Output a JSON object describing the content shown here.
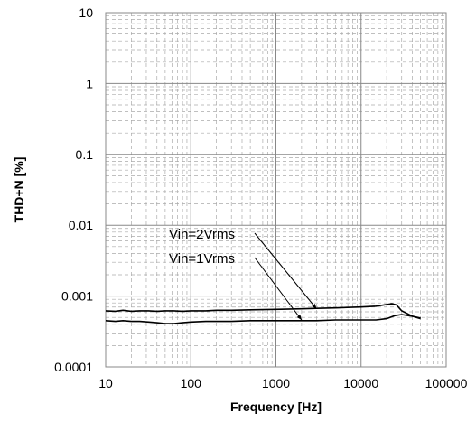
{
  "chart_data": {
    "type": "line",
    "xlabel": "Frequency [Hz]",
    "ylabel": "THD+N [%]",
    "x_scale": "log",
    "y_scale": "log",
    "xlim": [
      10,
      100000
    ],
    "ylim": [
      0.0001,
      10
    ],
    "x_ticks": [
      "10",
      "100",
      "1000",
      "10000",
      "100000"
    ],
    "y_ticks": [
      "10",
      "1",
      "0.1",
      "0.01",
      "0.001",
      "0.0001"
    ],
    "grid": true,
    "series": [
      {
        "name": "Vin=2Vrms",
        "color": "#000000",
        "x": [
          10,
          13,
          16,
          20,
          25,
          32,
          40,
          50,
          63,
          80,
          100,
          150,
          200,
          300,
          500,
          1000,
          2000,
          3000,
          5000,
          10000,
          15000,
          20000,
          23000,
          26000,
          30000,
          40000,
          50000
        ],
        "y": [
          0.00062,
          0.00061,
          0.00063,
          0.00061,
          0.00062,
          0.00062,
          0.00061,
          0.00062,
          0.00062,
          0.00061,
          0.00062,
          0.00062,
          0.00063,
          0.00063,
          0.00064,
          0.00065,
          0.00066,
          0.00067,
          0.00068,
          0.0007,
          0.00072,
          0.00076,
          0.00078,
          0.00075,
          0.00062,
          0.00052,
          0.00048
        ]
      },
      {
        "name": "Vin=1Vrms",
        "color": "#000000",
        "x": [
          10,
          13,
          16,
          20,
          25,
          32,
          40,
          50,
          63,
          80,
          100,
          150,
          200,
          300,
          500,
          1000,
          2000,
          3000,
          5000,
          10000,
          15000,
          20000,
          25000,
          30000,
          40000,
          50000
        ],
        "y": [
          0.00045,
          0.00044,
          0.00045,
          0.00044,
          0.00044,
          0.00043,
          0.00042,
          0.00041,
          0.00041,
          0.00042,
          0.00043,
          0.00044,
          0.00044,
          0.00044,
          0.00045,
          0.00045,
          0.00045,
          0.00045,
          0.00046,
          0.00046,
          0.00046,
          0.00048,
          0.00053,
          0.00055,
          0.00052,
          0.00049
        ]
      }
    ],
    "annotations": [
      {
        "text": "Vin=2Vrms",
        "points_to": [
          3000,
          0.00066
        ]
      },
      {
        "text": "Vin=1Vrms",
        "points_to": [
          2000,
          0.00046
        ]
      }
    ]
  }
}
